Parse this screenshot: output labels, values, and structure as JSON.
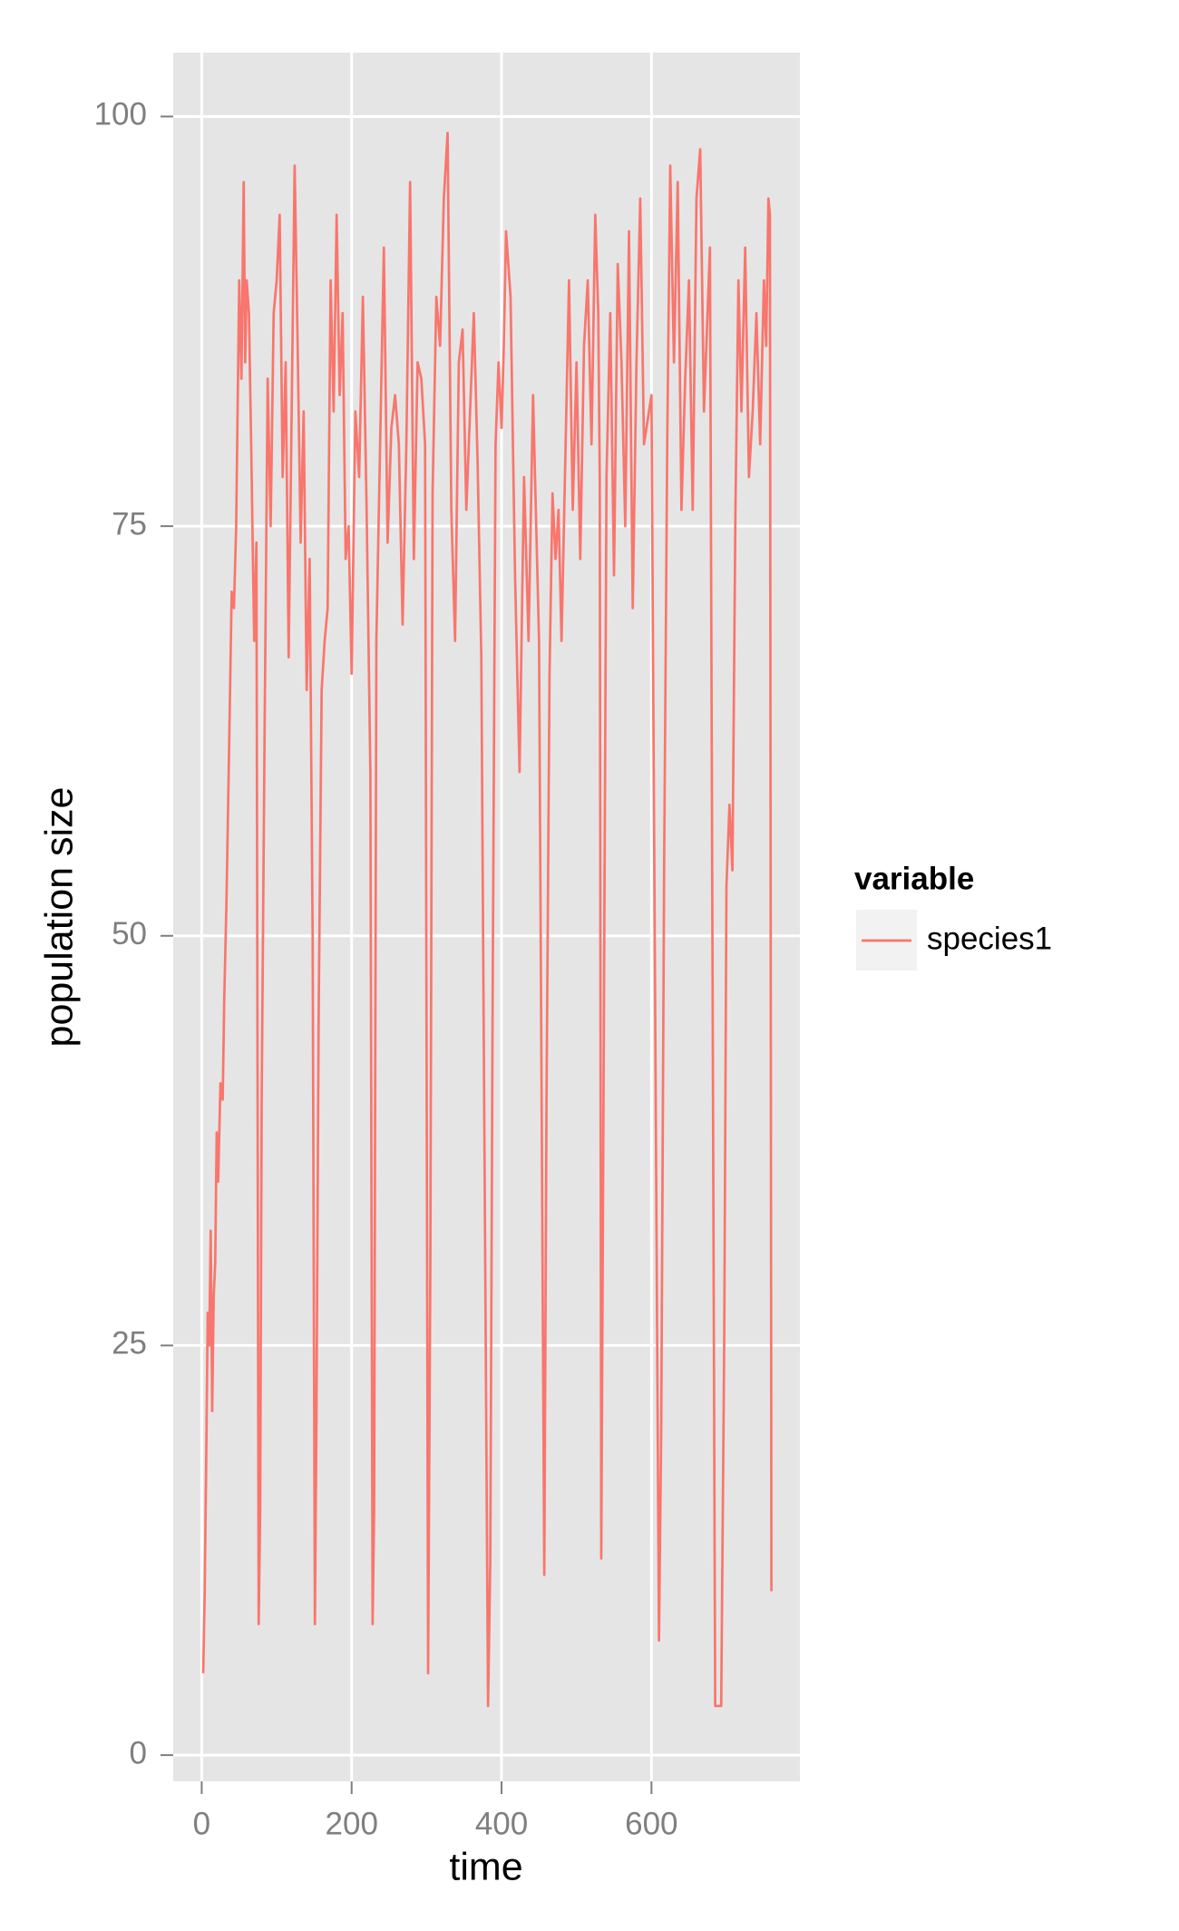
{
  "chart_data": {
    "type": "line",
    "x_label": "time",
    "y_label": "population size",
    "legend_title": "variable",
    "legend_position": "right",
    "grid": true,
    "xlim": [
      -38,
      798
    ],
    "xticks": [
      0,
      200,
      400,
      600
    ],
    "ylim": [
      -1.6,
      103.9
    ],
    "yticks": [
      0,
      25,
      50,
      75,
      100
    ],
    "x": [
      2,
      4,
      6,
      8,
      10,
      12,
      14,
      16,
      18,
      20,
      22,
      25,
      28,
      30,
      33,
      36,
      40,
      43,
      46,
      50,
      53,
      56,
      58,
      60,
      63,
      66,
      70,
      73,
      76,
      78,
      80,
      84,
      88,
      92,
      96,
      100,
      104,
      108,
      112,
      116,
      120,
      124,
      128,
      132,
      136,
      140,
      144,
      148,
      151,
      153,
      156,
      160,
      164,
      168,
      172,
      176,
      180,
      184,
      188,
      192,
      196,
      200,
      205,
      210,
      215,
      220,
      225,
      228,
      230,
      233,
      238,
      243,
      248,
      253,
      258,
      263,
      268,
      273,
      278,
      283,
      288,
      293,
      298,
      302,
      305,
      308,
      313,
      318,
      323,
      328,
      333,
      338,
      343,
      348,
      353,
      358,
      363,
      368,
      373,
      382,
      385,
      388,
      392,
      396,
      400,
      403,
      406,
      412,
      418,
      424,
      430,
      436,
      442,
      450,
      457,
      460,
      464,
      468,
      472,
      476,
      480,
      485,
      490,
      495,
      500,
      505,
      510,
      515,
      520,
      525,
      529,
      531,
      533,
      536,
      540,
      545,
      550,
      555,
      560,
      565,
      570,
      575,
      580,
      585,
      590,
      600,
      610,
      613,
      617,
      621,
      625,
      630,
      635,
      640,
      645,
      650,
      655,
      660,
      665,
      670,
      678,
      685,
      690,
      693,
      697,
      700,
      704,
      708,
      712,
      716,
      720,
      725,
      730,
      735,
      740,
      745,
      750,
      753,
      756,
      758,
      760
    ],
    "series": [
      {
        "name": "species1",
        "color": "#F8766D",
        "values": [
          5,
          10,
          18,
          27,
          25,
          32,
          21,
          28,
          30,
          38,
          35,
          41,
          40,
          46,
          52,
          60,
          71,
          70,
          75,
          90,
          84,
          96,
          85,
          90,
          88,
          80,
          68,
          74,
          8,
          15,
          40,
          63,
          84,
          75,
          88,
          90,
          94,
          78,
          85,
          67,
          82,
          97,
          86,
          74,
          82,
          65,
          73,
          50,
          8,
          20,
          45,
          65,
          68,
          70,
          90,
          82,
          94,
          83,
          88,
          73,
          75,
          66,
          82,
          78,
          89,
          76,
          60,
          8,
          15,
          68,
          80,
          92,
          74,
          81,
          83,
          80,
          69,
          80,
          96,
          73,
          85,
          84,
          80,
          5,
          30,
          77,
          89,
          86,
          95,
          99,
          76,
          68,
          85,
          87,
          76,
          82,
          88,
          79,
          67,
          3,
          12,
          45,
          80,
          85,
          81,
          86,
          93,
          89,
          72,
          60,
          78,
          68,
          83,
          68,
          11,
          40,
          66,
          77,
          73,
          76,
          68,
          79,
          90,
          76,
          85,
          73,
          86,
          90,
          80,
          94,
          88,
          78,
          12,
          40,
          78,
          88,
          72,
          91,
          85,
          75,
          93,
          70,
          85,
          95,
          80,
          83,
          7,
          20,
          55,
          80,
          97,
          85,
          96,
          76,
          84,
          90,
          76,
          95,
          98,
          82,
          92,
          3,
          3,
          3,
          25,
          53,
          58,
          54,
          76,
          90,
          82,
          92,
          78,
          82,
          88,
          80,
          90,
          86,
          95,
          94,
          10
        ]
      }
    ]
  }
}
